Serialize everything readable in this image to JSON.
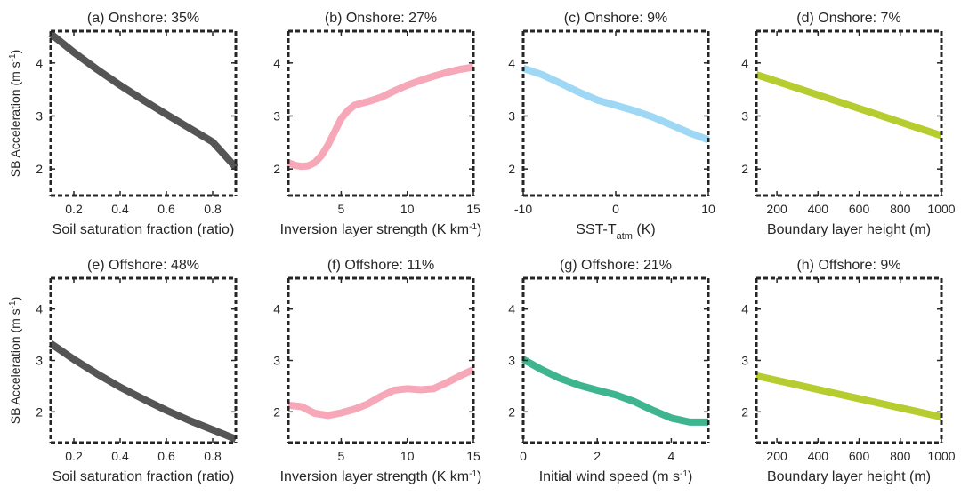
{
  "figure": {
    "ylabel": "SB Acceleration (m s",
    "ylabel_sup": "-1",
    "ylabel_close": ")"
  },
  "colors": {
    "soil": "#555555",
    "inversion": "#f7a8b8",
    "sst": "#9fd8f5",
    "boundary": "#b7cc2e",
    "wind": "#3fb58f"
  },
  "chart_data": [
    {
      "type": "line",
      "id": "a",
      "title": "(a) Onshore: 35%",
      "xlabel": "Soil saturation fraction (ratio)",
      "xlim": [
        0.1,
        0.9
      ],
      "ylim": [
        1.5,
        4.6
      ],
      "xticks": [
        0.2,
        0.4,
        0.6,
        0.8
      ],
      "xtick_labels": [
        "0.2",
        "0.4",
        "0.6",
        "0.8"
      ],
      "yticks": [
        2,
        3,
        4
      ],
      "ytick_labels": [
        "2",
        "3",
        "4"
      ],
      "color": "#555555",
      "x": [
        0.1,
        0.2,
        0.3,
        0.4,
        0.5,
        0.6,
        0.7,
        0.8,
        0.9
      ],
      "y": [
        4.55,
        4.2,
        3.88,
        3.58,
        3.3,
        3.03,
        2.77,
        2.51,
        2.03
      ]
    },
    {
      "type": "line",
      "id": "b",
      "title": "(b) Onshore: 27%",
      "xlabel": "Inversion layer strength (K km",
      "xlabel_sup": "-1",
      "xlabel_close": ")",
      "xlim": [
        1,
        15
      ],
      "ylim": [
        1.5,
        4.6
      ],
      "xticks": [
        5,
        10,
        15
      ],
      "xtick_labels": [
        "5",
        "10",
        "15"
      ],
      "yticks": [
        2,
        3,
        4
      ],
      "ytick_labels": [
        "2",
        "3",
        "4"
      ],
      "color": "#f7a8b8",
      "x": [
        1,
        1.5,
        2,
        2.5,
        3,
        3.5,
        4,
        4.5,
        5,
        5.5,
        6,
        6.5,
        7,
        8,
        9,
        10,
        11,
        12,
        13,
        14,
        15
      ],
      "y": [
        2.12,
        2.07,
        2.05,
        2.06,
        2.12,
        2.25,
        2.45,
        2.7,
        2.95,
        3.1,
        3.2,
        3.24,
        3.27,
        3.35,
        3.47,
        3.58,
        3.67,
        3.75,
        3.82,
        3.88,
        3.92
      ]
    },
    {
      "type": "line",
      "id": "c",
      "title": "(c) Onshore: 9%",
      "xlabel": "SST-T",
      "xlabel_sub": "atm",
      "xlabel_close": " (K)",
      "xlim": [
        -10,
        10
      ],
      "ylim": [
        1.5,
        4.6
      ],
      "xticks": [
        -10,
        0,
        10
      ],
      "xtick_labels": [
        "-10",
        "0",
        "10"
      ],
      "yticks": [
        2,
        3,
        4
      ],
      "ytick_labels": [
        "2",
        "3",
        "4"
      ],
      "color": "#9fd8f5",
      "x": [
        -10,
        -8,
        -6,
        -4,
        -2,
        0,
        2,
        4,
        6,
        8,
        10
      ],
      "y": [
        3.9,
        3.78,
        3.62,
        3.45,
        3.3,
        3.2,
        3.1,
        2.98,
        2.83,
        2.68,
        2.55
      ]
    },
    {
      "type": "line",
      "id": "d",
      "title": "(d) Onshore: 7%",
      "xlabel": "Boundary layer height (m)",
      "xlim": [
        100,
        1000
      ],
      "ylim": [
        1.5,
        4.6
      ],
      "xticks": [
        200,
        400,
        600,
        800,
        1000
      ],
      "xtick_labels": [
        "200",
        "400",
        "600",
        "800",
        "1000"
      ],
      "yticks": [
        2,
        3,
        4
      ],
      "ytick_labels": [
        "2",
        "3",
        "4"
      ],
      "color": "#b7cc2e",
      "x": [
        100,
        1000
      ],
      "y": [
        3.78,
        2.63
      ]
    },
    {
      "type": "line",
      "id": "e",
      "title": "(e) Offshore: 48%",
      "xlabel": "Soil saturation fraction (ratio)",
      "xlim": [
        0.1,
        0.9
      ],
      "ylim": [
        1.4,
        4.6
      ],
      "xticks": [
        0.2,
        0.4,
        0.6,
        0.8
      ],
      "xtick_labels": [
        "0.2",
        "0.4",
        "0.6",
        "0.8"
      ],
      "yticks": [
        2,
        3,
        4
      ],
      "ytick_labels": [
        "2",
        "3",
        "4"
      ],
      "color": "#555555",
      "x": [
        0.1,
        0.2,
        0.3,
        0.4,
        0.5,
        0.6,
        0.7,
        0.8,
        0.9
      ],
      "y": [
        3.33,
        3.02,
        2.74,
        2.48,
        2.25,
        2.03,
        1.83,
        1.65,
        1.47
      ]
    },
    {
      "type": "line",
      "id": "f",
      "title": "(f) Offshore: 11%",
      "xlabel": "Inversion layer strength (K km",
      "xlabel_sup": "-1",
      "xlabel_close": ")",
      "xlim": [
        1,
        15
      ],
      "ylim": [
        1.4,
        4.6
      ],
      "xticks": [
        5,
        10,
        15
      ],
      "xtick_labels": [
        "5",
        "10",
        "15"
      ],
      "yticks": [
        2,
        3,
        4
      ],
      "ytick_labels": [
        "2",
        "3",
        "4"
      ],
      "color": "#f7a8b8",
      "x": [
        1,
        2,
        3,
        4,
        5,
        6,
        7,
        8,
        9,
        10,
        11,
        12,
        13,
        14,
        15
      ],
      "y": [
        2.13,
        2.1,
        1.97,
        1.93,
        1.98,
        2.05,
        2.15,
        2.3,
        2.42,
        2.45,
        2.43,
        2.45,
        2.57,
        2.7,
        2.82
      ]
    },
    {
      "type": "line",
      "id": "g",
      "title": "(g) Offshore: 21%",
      "xlabel": "Initial wind speed (m s",
      "xlabel_sup": "-1",
      "xlabel_close": ")",
      "xlim": [
        0,
        5
      ],
      "ylim": [
        1.4,
        4.6
      ],
      "xticks": [
        0,
        2,
        4
      ],
      "xtick_labels": [
        "0",
        "2",
        "4"
      ],
      "yticks": [
        2,
        3,
        4
      ],
      "ytick_labels": [
        "2",
        "3",
        "4"
      ],
      "color": "#3fb58f",
      "x": [
        0,
        0.5,
        1,
        1.5,
        2,
        2.5,
        3,
        3.5,
        4,
        4.5,
        5
      ],
      "y": [
        3.02,
        2.82,
        2.65,
        2.52,
        2.42,
        2.33,
        2.2,
        2.03,
        1.88,
        1.8,
        1.8
      ]
    },
    {
      "type": "line",
      "id": "h",
      "title": "(h) Offshore: 9%",
      "xlabel": "Boundary layer height (m)",
      "xlim": [
        100,
        1000
      ],
      "ylim": [
        1.4,
        4.6
      ],
      "xticks": [
        200,
        400,
        600,
        800,
        1000
      ],
      "xtick_labels": [
        "200",
        "400",
        "600",
        "800",
        "1000"
      ],
      "yticks": [
        2,
        3,
        4
      ],
      "ytick_labels": [
        "2",
        "3",
        "4"
      ],
      "color": "#b7cc2e",
      "x": [
        100,
        1000
      ],
      "y": [
        2.7,
        1.9
      ]
    }
  ]
}
